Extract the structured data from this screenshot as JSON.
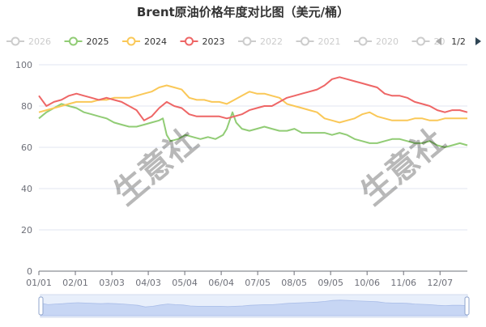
{
  "chart_data": {
    "type": "line",
    "title": "Brent原油价格年度对比图（美元/桶）",
    "xlabel": "",
    "ylabel": "",
    "x_ticks": [
      "01/01",
      "02/01",
      "03/03",
      "04/03",
      "05/04",
      "06/04",
      "07/05",
      "08/05",
      "09/05",
      "10/06",
      "11/06",
      "12/07"
    ],
    "y_ticks": [
      0,
      20,
      40,
      60,
      80,
      100
    ],
    "ylim": [
      0,
      100
    ],
    "grid": true,
    "legend": {
      "position": "top",
      "page": "1/2",
      "entries": [
        {
          "name": "2026",
          "active": false,
          "color": "#cccccc"
        },
        {
          "name": "2025",
          "active": true,
          "color": "#91cc75"
        },
        {
          "name": "2024",
          "active": true,
          "color": "#fac858"
        },
        {
          "name": "2023",
          "active": true,
          "color": "#ee6666"
        },
        {
          "name": "2022",
          "active": false,
          "color": "#cccccc"
        },
        {
          "name": "2021",
          "active": false,
          "color": "#cccccc"
        },
        {
          "name": "2020",
          "active": false,
          "color": "#cccccc"
        },
        {
          "name": "20",
          "active": false,
          "color": "#cccccc"
        }
      ]
    },
    "series": [
      {
        "name": "2025",
        "color": "#91cc75",
        "points": [
          [
            0,
            74
          ],
          [
            4,
            77
          ],
          [
            8,
            79
          ],
          [
            12,
            81
          ],
          [
            16,
            80
          ],
          [
            20,
            79
          ],
          [
            24,
            77
          ],
          [
            28,
            76
          ],
          [
            32,
            75
          ],
          [
            36,
            74
          ],
          [
            40,
            72
          ],
          [
            44,
            71
          ],
          [
            48,
            70
          ],
          [
            52,
            70
          ],
          [
            56,
            71
          ],
          [
            60,
            72
          ],
          [
            64,
            73
          ],
          [
            66,
            74
          ],
          [
            68,
            66
          ],
          [
            70,
            63
          ],
          [
            74,
            64
          ],
          [
            78,
            66
          ],
          [
            82,
            65
          ],
          [
            86,
            64
          ],
          [
            90,
            65
          ],
          [
            94,
            64
          ],
          [
            98,
            66
          ],
          [
            100,
            69
          ],
          [
            103,
            77
          ],
          [
            105,
            72
          ],
          [
            108,
            69
          ],
          [
            112,
            68
          ],
          [
            116,
            69
          ],
          [
            120,
            70
          ],
          [
            124,
            69
          ],
          [
            128,
            68
          ],
          [
            132,
            68
          ],
          [
            136,
            69
          ],
          [
            140,
            67
          ],
          [
            144,
            67
          ],
          [
            148,
            67
          ],
          [
            152,
            67
          ],
          [
            156,
            66
          ],
          [
            160,
            67
          ],
          [
            164,
            66
          ],
          [
            168,
            64
          ],
          [
            172,
            63
          ],
          [
            176,
            62
          ],
          [
            180,
            62
          ],
          [
            184,
            63
          ],
          [
            188,
            64
          ],
          [
            192,
            64
          ],
          [
            196,
            63
          ],
          [
            200,
            62
          ],
          [
            204,
            62
          ],
          [
            208,
            63
          ],
          [
            212,
            61
          ],
          [
            216,
            60
          ],
          [
            220,
            61
          ],
          [
            224,
            62
          ],
          [
            228,
            61
          ]
        ]
      },
      {
        "name": "2024",
        "color": "#fac858",
        "points": [
          [
            0,
            77
          ],
          [
            4,
            78
          ],
          [
            8,
            79
          ],
          [
            12,
            80
          ],
          [
            16,
            81
          ],
          [
            20,
            82
          ],
          [
            24,
            82
          ],
          [
            28,
            82
          ],
          [
            32,
            83
          ],
          [
            36,
            83
          ],
          [
            40,
            84
          ],
          [
            44,
            84
          ],
          [
            48,
            84
          ],
          [
            52,
            85
          ],
          [
            56,
            86
          ],
          [
            60,
            87
          ],
          [
            64,
            89
          ],
          [
            68,
            90
          ],
          [
            72,
            89
          ],
          [
            76,
            88
          ],
          [
            80,
            84
          ],
          [
            84,
            83
          ],
          [
            88,
            83
          ],
          [
            92,
            82
          ],
          [
            96,
            82
          ],
          [
            100,
            81
          ],
          [
            104,
            83
          ],
          [
            108,
            85
          ],
          [
            112,
            87
          ],
          [
            116,
            86
          ],
          [
            120,
            86
          ],
          [
            124,
            85
          ],
          [
            128,
            84
          ],
          [
            132,
            81
          ],
          [
            136,
            80
          ],
          [
            140,
            79
          ],
          [
            144,
            78
          ],
          [
            148,
            77
          ],
          [
            152,
            74
          ],
          [
            156,
            73
          ],
          [
            160,
            72
          ],
          [
            164,
            73
          ],
          [
            168,
            74
          ],
          [
            172,
            76
          ],
          [
            176,
            77
          ],
          [
            180,
            75
          ],
          [
            184,
            74
          ],
          [
            188,
            73
          ],
          [
            192,
            73
          ],
          [
            196,
            73
          ],
          [
            200,
            74
          ],
          [
            204,
            74
          ],
          [
            208,
            73
          ],
          [
            212,
            73
          ],
          [
            216,
            74
          ],
          [
            220,
            74
          ],
          [
            224,
            74
          ],
          [
            228,
            74
          ]
        ]
      },
      {
        "name": "2023",
        "color": "#ee6666",
        "points": [
          [
            0,
            85
          ],
          [
            4,
            80
          ],
          [
            8,
            82
          ],
          [
            12,
            83
          ],
          [
            16,
            85
          ],
          [
            20,
            86
          ],
          [
            24,
            85
          ],
          [
            28,
            84
          ],
          [
            32,
            83
          ],
          [
            36,
            84
          ],
          [
            40,
            83
          ],
          [
            44,
            82
          ],
          [
            48,
            80
          ],
          [
            52,
            78
          ],
          [
            56,
            73
          ],
          [
            60,
            75
          ],
          [
            64,
            79
          ],
          [
            68,
            82
          ],
          [
            72,
            80
          ],
          [
            76,
            79
          ],
          [
            80,
            76
          ],
          [
            84,
            75
          ],
          [
            88,
            75
          ],
          [
            92,
            75
          ],
          [
            96,
            75
          ],
          [
            100,
            74
          ],
          [
            104,
            75
          ],
          [
            108,
            76
          ],
          [
            112,
            78
          ],
          [
            116,
            79
          ],
          [
            120,
            80
          ],
          [
            124,
            80
          ],
          [
            128,
            82
          ],
          [
            132,
            84
          ],
          [
            136,
            85
          ],
          [
            140,
            86
          ],
          [
            144,
            87
          ],
          [
            148,
            88
          ],
          [
            152,
            90
          ],
          [
            156,
            93
          ],
          [
            160,
            94
          ],
          [
            164,
            93
          ],
          [
            168,
            92
          ],
          [
            172,
            91
          ],
          [
            176,
            90
          ],
          [
            180,
            89
          ],
          [
            184,
            86
          ],
          [
            188,
            85
          ],
          [
            192,
            85
          ],
          [
            196,
            84
          ],
          [
            200,
            82
          ],
          [
            204,
            81
          ],
          [
            208,
            80
          ],
          [
            212,
            78
          ],
          [
            216,
            77
          ],
          [
            220,
            78
          ],
          [
            224,
            78
          ],
          [
            228,
            77
          ]
        ]
      }
    ],
    "x_domain": [
      0,
      228
    ],
    "watermark": "生意社"
  },
  "slider": {
    "handle_label_left": "",
    "handle_label_right": ""
  },
  "page_label": "1/2"
}
